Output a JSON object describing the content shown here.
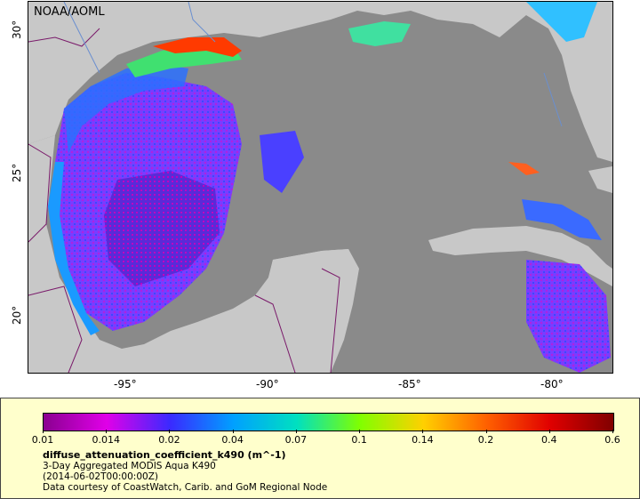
{
  "map": {
    "brand": "NOAA/AOML",
    "lon_ticks": [
      "-95°",
      "-90°",
      "-85°",
      "-80°"
    ],
    "lat_ticks": [
      "30°",
      "25°",
      "20°"
    ],
    "lon_range": [
      -98,
      -78
    ],
    "lat_range": [
      18,
      31
    ],
    "colors": {
      "land": "#c8c8c8",
      "no_data": "#8a8a8a",
      "border": "#7a1a6a",
      "river": "#6a8fd0"
    }
  },
  "legend": {
    "variable": "diffuse_attenuation_coefficient_k490 (m^-1)",
    "description": "3-Day Aggregated MODIS Aqua K490",
    "time": "(2014-06-02T00:00:00Z)",
    "credit": "Data courtesy of CoastWatch, Carib. and GoM Regional Node",
    "scale_labels": [
      "0.01",
      "0.014",
      "0.02",
      "0.04",
      "0.07",
      "0.1",
      "0.14",
      "0.2",
      "0.4",
      "0.6"
    ],
    "scale_colors": [
      "#8a0090",
      "#e000e8",
      "#3a2aff",
      "#00a0ff",
      "#00e0c0",
      "#80ff00",
      "#ffd000",
      "#ff6000",
      "#e00000",
      "#800000"
    ]
  }
}
